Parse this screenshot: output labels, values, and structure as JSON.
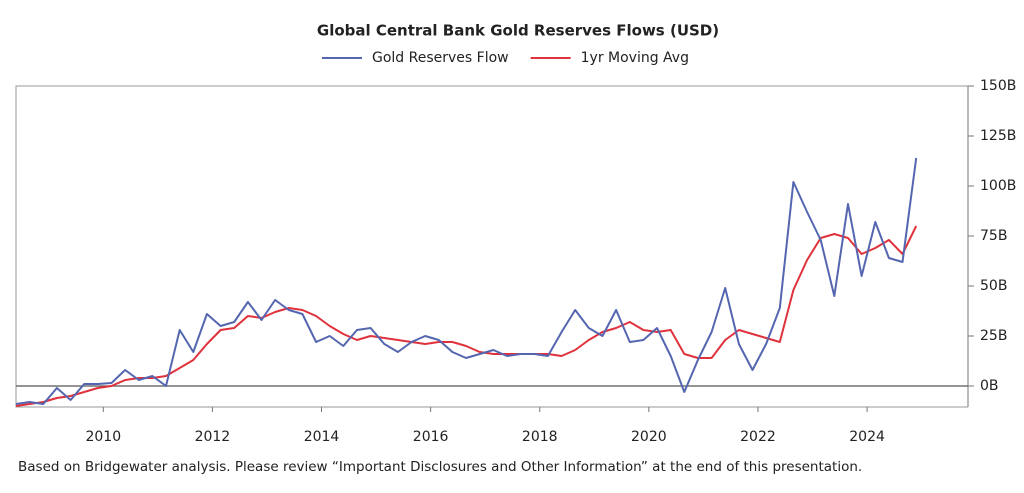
{
  "chart_data": {
    "type": "line",
    "title": "Global Central Bank Gold Reserves Flows (USD)",
    "footnote": "Based on Bridgewater analysis. Please review “Important Disclosures and Other Information” at the end of this presentation.",
    "x": [
      2008.4,
      2008.65,
      2008.9,
      2009.15,
      2009.4,
      2009.65,
      2009.9,
      2010.15,
      2010.4,
      2010.65,
      2010.9,
      2011.15,
      2011.4,
      2011.65,
      2011.9,
      2012.15,
      2012.4,
      2012.65,
      2012.9,
      2013.15,
      2013.4,
      2013.65,
      2013.9,
      2014.15,
      2014.4,
      2014.65,
      2014.9,
      2015.15,
      2015.4,
      2015.65,
      2015.9,
      2016.15,
      2016.4,
      2016.65,
      2016.9,
      2017.15,
      2017.4,
      2017.65,
      2017.9,
      2018.15,
      2018.4,
      2018.65,
      2018.9,
      2019.15,
      2019.4,
      2019.65,
      2019.9,
      2020.15,
      2020.4,
      2020.65,
      2020.9,
      2021.15,
      2021.4,
      2021.65,
      2021.9,
      2022.15,
      2022.4,
      2022.65,
      2022.9,
      2023.15,
      2023.4,
      2023.65,
      2023.9,
      2024.15,
      2024.4,
      2024.65,
      2024.9
    ],
    "series": [
      {
        "name": "Gold Reserves Flow",
        "color": "#5566b0",
        "values": [
          -9,
          -8,
          -9,
          -1,
          -7,
          1,
          1,
          1.5,
          8,
          3,
          5,
          0,
          28,
          17,
          36,
          30,
          32,
          42,
          33,
          43,
          38,
          36,
          22,
          25,
          20,
          28,
          29,
          21,
          17,
          22,
          25,
          23,
          17,
          14,
          16,
          18,
          15,
          16,
          16,
          15,
          27,
          38,
          29,
          25,
          38,
          22,
          23,
          29,
          15,
          -3,
          13,
          27,
          49,
          21,
          8,
          21,
          39,
          102,
          87,
          73,
          45,
          91,
          55,
          82,
          64,
          62,
          114
        ]
      },
      {
        "name": "1yr Moving Avg",
        "color": "#e0323c",
        "values": [
          -10,
          -9,
          -8,
          -6,
          -5,
          -3,
          -1,
          0,
          3,
          4,
          4,
          5,
          9,
          13,
          21,
          28,
          29,
          35,
          34,
          37,
          39,
          38,
          35,
          30,
          26,
          23,
          25,
          24,
          23,
          22,
          21,
          22,
          22,
          20,
          17,
          16,
          16,
          16,
          16,
          16,
          15,
          18,
          23,
          27,
          29,
          32,
          28,
          27,
          28,
          16,
          14,
          14,
          23,
          28,
          26,
          24,
          22,
          48,
          63,
          74,
          76,
          74,
          66,
          69,
          73,
          66,
          80
        ]
      }
    ],
    "xlim": [
      2008.4,
      2025.85
    ],
    "xticks": [
      2010,
      2012,
      2014,
      2016,
      2018,
      2020,
      2022,
      2024
    ],
    "ylim": [
      -10.5,
      150
    ],
    "yticks": [
      {
        "value": 0,
        "label": "0B"
      },
      {
        "value": 25,
        "label": "25B"
      },
      {
        "value": 50,
        "label": "50B"
      },
      {
        "value": 75,
        "label": "75B"
      },
      {
        "value": 100,
        "label": "100B"
      },
      {
        "value": 125,
        "label": "125B"
      },
      {
        "value": 150,
        "label": "150B"
      }
    ]
  }
}
